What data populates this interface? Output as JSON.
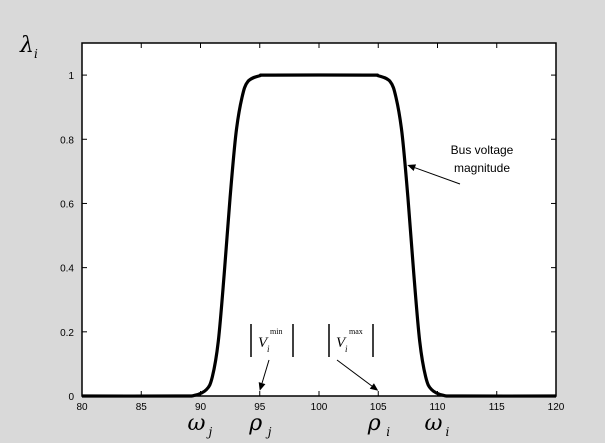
{
  "chart_data": {
    "type": "line",
    "ylabel": "λ",
    "ylabel_sub": "i",
    "xlim": [
      80,
      120
    ],
    "ylim": [
      0,
      1.1
    ],
    "x_ticks": [
      "80",
      "85",
      "90",
      "95",
      "100",
      "105",
      "110",
      "115",
      "120"
    ],
    "y_ticks": [
      "0",
      "0.2",
      "0.4",
      "0.6",
      "0.8",
      "1"
    ],
    "grid": false,
    "series": [
      {
        "x": [
          80,
          88,
          89.5,
          90.5,
          91,
          91.5,
          92,
          92.5,
          93,
          93.5,
          94,
          95,
          96,
          104,
          105,
          106,
          106.5,
          107,
          107.5,
          108,
          108.5,
          109,
          109.5,
          110.5,
          112,
          120
        ],
        "y": [
          0,
          0,
          0.002,
          0.02,
          0.06,
          0.17,
          0.38,
          0.62,
          0.82,
          0.93,
          0.98,
          0.998,
          1,
          1,
          0.998,
          0.98,
          0.93,
          0.82,
          0.62,
          0.38,
          0.17,
          0.06,
          0.02,
          0.002,
          0,
          0
        ]
      }
    ],
    "annotation": {
      "line1": "Bus voltage",
      "line2": "magnitude",
      "arrow_target": [
        107.2,
        0.72
      ]
    },
    "threshold_labels": [
      {
        "text": "V",
        "sup": "min",
        "sub": "i",
        "arrow_target": [
          95,
          0.01
        ]
      },
      {
        "text": "V",
        "sup": "max",
        "sub": "i",
        "arrow_target": [
          105,
          0.01
        ]
      }
    ],
    "below_axis_labels": [
      {
        "symbol": "ω",
        "sub": "j",
        "x": 90
      },
      {
        "symbol": "ρ",
        "sub": "j",
        "x": 95
      },
      {
        "symbol": "ρ",
        "sub": "i",
        "x": 105
      },
      {
        "symbol": "ω",
        "sub": "i",
        "x": 110
      }
    ]
  }
}
